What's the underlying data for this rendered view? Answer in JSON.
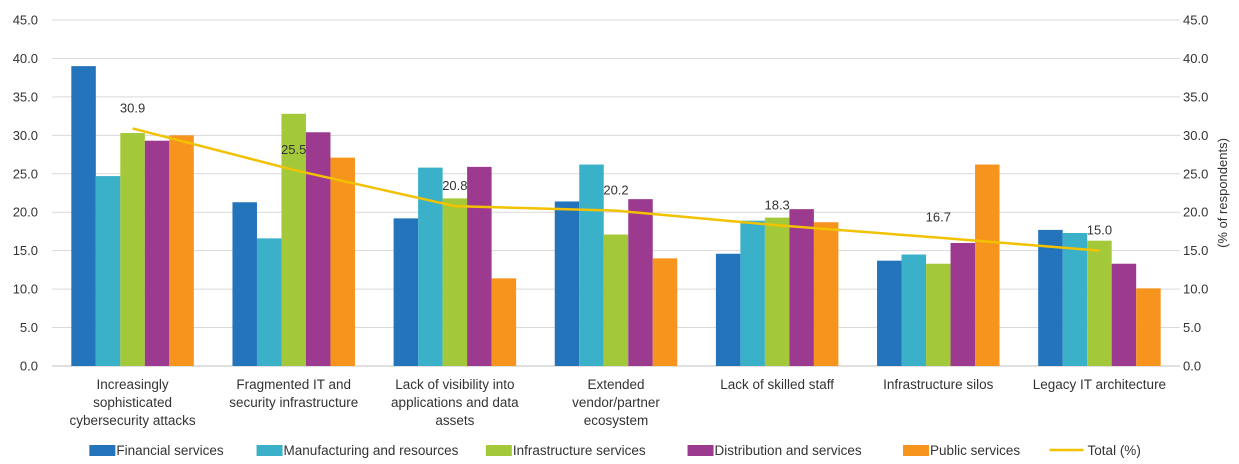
{
  "chart_data": {
    "type": "bar",
    "categories": [
      [
        "Increasingly",
        "sophisticated",
        "cybersecurity attacks"
      ],
      [
        "Fragmented IT and",
        "security infrastructure"
      ],
      [
        "Lack of visibility into",
        "applications and data",
        "assets"
      ],
      [
        "Extended",
        "vendor/partner",
        "ecosystem"
      ],
      [
        "Lack of skilled staff"
      ],
      [
        "Infrastructure silos"
      ],
      [
        "Legacy IT architecture"
      ]
    ],
    "series": [
      {
        "name": "Financial services",
        "color": "#2474BC",
        "values": [
          39.0,
          21.3,
          19.2,
          21.4,
          14.6,
          13.7,
          17.7
        ]
      },
      {
        "name": "Manufacturing and resources",
        "color": "#3AB0C9",
        "values": [
          24.7,
          16.6,
          25.8,
          26.2,
          18.9,
          14.5,
          17.3
        ]
      },
      {
        "name": "Infrastructure services",
        "color": "#A3C93A",
        "values": [
          30.3,
          32.8,
          21.8,
          17.1,
          19.3,
          13.3,
          16.3
        ]
      },
      {
        "name": "Distribution and services",
        "color": "#9B3A8F",
        "values": [
          29.3,
          30.4,
          25.9,
          21.7,
          20.4,
          16.0,
          13.3
        ]
      },
      {
        "name": "Public services",
        "color": "#F7941D",
        "values": [
          30.0,
          27.1,
          11.4,
          14.0,
          18.7,
          26.2,
          10.1
        ]
      }
    ],
    "line": {
      "name": "Total (%)",
      "color": "#F2C200",
      "values": [
        30.9,
        25.5,
        20.8,
        20.2,
        18.3,
        16.7,
        15.0
      ]
    },
    "ylim": [
      0,
      45
    ],
    "yticks": [
      "0.0",
      "5.0",
      "10.0",
      "15.0",
      "20.0",
      "25.0",
      "30.0",
      "35.0",
      "40.0",
      "45.0"
    ],
    "y2label": "(% of respondents)",
    "grid": true,
    "legend": "bottom"
  }
}
